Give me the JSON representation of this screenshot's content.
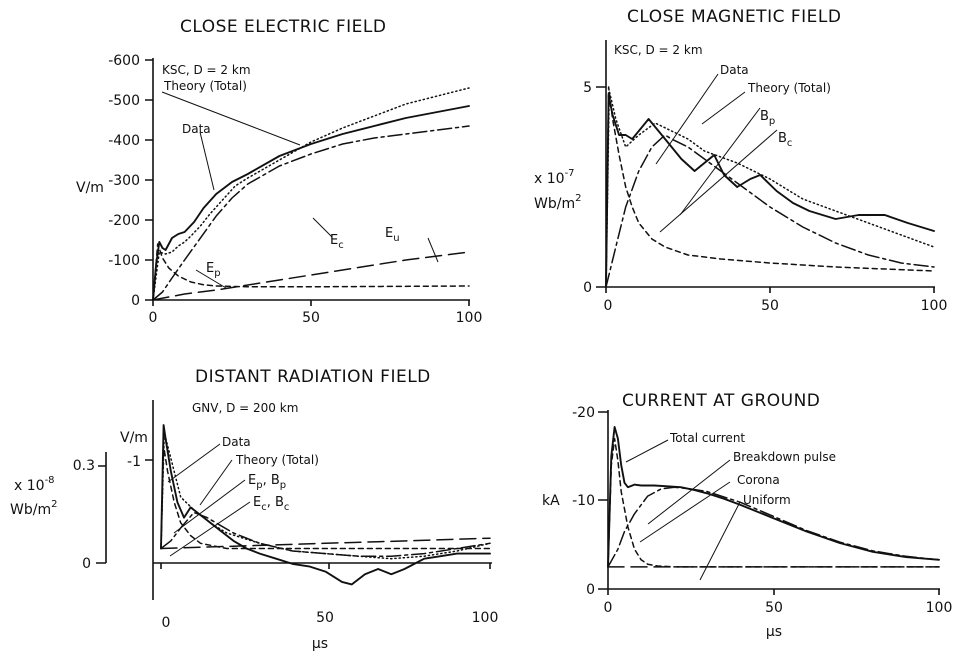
{
  "chart_data": [
    {
      "type": "line",
      "title": "CLOSE ELECTRIC FIELD",
      "subtitle": "KSC, D = 2 km",
      "xlabel": "",
      "ylabel": "V/m",
      "xlim": [
        0,
        100
      ],
      "ylim": [
        0,
        -600
      ],
      "xticks": [
        "0",
        "50",
        "100"
      ],
      "yticks": [
        "0",
        "-100",
        "-200",
        "-300",
        "-400",
        "-500",
        "-600"
      ],
      "series": [
        {
          "name": "Data",
          "style": "solid",
          "x": [
            0,
            1,
            2,
            3,
            4,
            6,
            8,
            10,
            13,
            16,
            20,
            25,
            30,
            40,
            50,
            60,
            70,
            80,
            90,
            100
          ],
          "y": [
            0,
            -90,
            -145,
            -130,
            -125,
            -155,
            -165,
            -170,
            -195,
            -230,
            -265,
            -295,
            -315,
            -360,
            -390,
            -415,
            -435,
            -455,
            -470,
            -485
          ]
        },
        {
          "name": "Theory (Total)",
          "style": "dotted",
          "x": [
            0,
            2,
            4,
            6,
            8,
            10,
            12,
            15,
            18,
            22,
            26,
            30,
            40,
            50,
            60,
            70,
            80,
            90,
            100
          ],
          "y": [
            0,
            -120,
            -115,
            -120,
            -135,
            -145,
            -160,
            -185,
            -215,
            -250,
            -285,
            -305,
            -350,
            -395,
            -430,
            -460,
            -490,
            -510,
            -530
          ]
        },
        {
          "name": "Ec",
          "style": "dashdot",
          "x": [
            0,
            3,
            6,
            10,
            15,
            20,
            25,
            30,
            40,
            50,
            60,
            70,
            80,
            90,
            100
          ],
          "y": [
            0,
            -20,
            -55,
            -100,
            -155,
            -210,
            -255,
            -290,
            -335,
            -365,
            -390,
            -405,
            -415,
            -425,
            -435
          ]
        },
        {
          "name": "Ep",
          "style": "shortdash",
          "x": [
            0,
            1.5,
            3,
            5,
            8,
            12,
            16,
            20,
            30,
            50,
            75,
            100
          ],
          "y": [
            0,
            -140,
            -105,
            -80,
            -60,
            -45,
            -38,
            -35,
            -33,
            -33,
            -34,
            -35
          ]
        },
        {
          "name": "Eu",
          "style": "longdash",
          "x": [
            0,
            10,
            20,
            40,
            60,
            80,
            100
          ],
          "y": [
            0,
            -15,
            -25,
            -50,
            -75,
            -100,
            -120
          ]
        }
      ]
    },
    {
      "type": "line",
      "title": "CLOSE MAGNETIC FIELD",
      "subtitle": "KSC, D = 2 km",
      "xlabel": "",
      "ylabel_line1": "x 10",
      "ylabel_exp": "-7",
      "ylabel_line2": "Wb/m",
      "ylabel_sup": "2",
      "xlim": [
        0,
        100
      ],
      "ylim": [
        0,
        6
      ],
      "xticks": [
        "0",
        "50",
        "100"
      ],
      "yticks": [
        "0",
        "5"
      ],
      "series": [
        {
          "name": "Data",
          "style": "solid",
          "x": [
            0,
            0.8,
            2,
            4,
            6,
            8,
            10,
            13,
            16,
            20,
            23,
            27,
            30,
            33,
            36,
            40,
            44,
            47,
            52,
            57,
            62,
            70,
            77,
            85,
            92,
            100
          ],
          "y": [
            0,
            4.8,
            4.3,
            3.8,
            3.8,
            3.7,
            3.9,
            4.2,
            3.9,
            3.5,
            3.2,
            2.9,
            3.1,
            3.3,
            2.8,
            2.5,
            2.7,
            2.8,
            2.4,
            2.1,
            1.9,
            1.7,
            1.8,
            1.8,
            1.6,
            1.4
          ]
        },
        {
          "name": "Theory (Total)",
          "style": "dotted",
          "x": [
            0,
            1,
            3,
            6,
            10,
            15,
            20,
            25,
            30,
            40,
            50,
            60,
            70,
            80,
            90,
            100
          ],
          "y": [
            0,
            4.9,
            4.2,
            3.5,
            3.8,
            4.1,
            3.9,
            3.7,
            3.4,
            3.1,
            2.7,
            2.2,
            1.9,
            1.6,
            1.3,
            1.0
          ]
        },
        {
          "name": "Bp",
          "style": "dashdot",
          "x": [
            0,
            3,
            6,
            10,
            14,
            18,
            20,
            25,
            30,
            40,
            50,
            60,
            70,
            80,
            90,
            100
          ],
          "y": [
            0,
            1.0,
            2.0,
            2.9,
            3.5,
            3.8,
            3.7,
            3.5,
            3.2,
            2.6,
            2.0,
            1.5,
            1.1,
            0.8,
            0.6,
            0.5
          ]
        },
        {
          "name": "Bc",
          "style": "shortdash",
          "x": [
            0,
            0.8,
            2,
            4,
            6,
            8,
            10,
            14,
            18,
            25,
            35,
            50,
            70,
            100
          ],
          "y": [
            0,
            5.0,
            4.2,
            3.3,
            2.5,
            2.0,
            1.6,
            1.2,
            1.0,
            0.8,
            0.7,
            0.6,
            0.5,
            0.4
          ]
        }
      ]
    },
    {
      "type": "line",
      "title": "DISTANT RADIATION FIELD",
      "subtitle": "GNV, D = 200 km",
      "xlabel": "μs",
      "ylabel_line1": "x 10",
      "ylabel_exp": "-8",
      "ylabel_line2": "Wb/m",
      "ylabel_sup": "2",
      "ylabel2": "V/m",
      "xlim": [
        0,
        100
      ],
      "ylim": [
        -0.15,
        0.5
      ],
      "xticks": [
        "0",
        "50",
        "100"
      ],
      "yticks_left": [
        "0",
        "0.3"
      ],
      "yticks_right": [
        "-1"
      ],
      "series": [
        {
          "name": "Data",
          "style": "solid",
          "x": [
            0,
            0.8,
            1.5,
            3,
            5,
            7,
            9,
            11,
            13,
            15,
            18,
            22,
            26,
            30,
            35,
            40,
            45,
            50,
            55,
            58,
            62,
            66,
            70,
            74,
            77,
            80,
            85,
            90,
            95,
            100
          ],
          "y": [
            0,
            0.48,
            0.42,
            0.3,
            0.18,
            0.12,
            0.16,
            0.14,
            0.12,
            0.1,
            0.07,
            0.03,
            0.0,
            -0.02,
            -0.04,
            -0.06,
            -0.07,
            -0.09,
            -0.13,
            -0.14,
            -0.1,
            -0.08,
            -0.1,
            -0.08,
            -0.06,
            -0.04,
            -0.03,
            -0.02,
            -0.02,
            -0.02
          ]
        },
        {
          "name": "Theory (Total)",
          "style": "dotted",
          "x": [
            0,
            1,
            3,
            6,
            10,
            15,
            20,
            30,
            40,
            50,
            60,
            70,
            80,
            90,
            100
          ],
          "y": [
            0,
            0.45,
            0.35,
            0.2,
            0.15,
            0.1,
            0.06,
            0.02,
            -0.01,
            -0.02,
            -0.03,
            -0.04,
            -0.03,
            -0.01,
            0.02
          ]
        },
        {
          "name": "Ep, Bp",
          "style": "shortdash",
          "x": [
            0,
            0.8,
            2,
            4,
            6,
            9,
            12,
            16,
            20,
            30,
            50,
            100
          ],
          "y": [
            0,
            0.4,
            0.3,
            0.18,
            0.1,
            0.05,
            0.02,
            0.01,
            0.0,
            0.0,
            0.0,
            0.0
          ]
        },
        {
          "name": "Ec, Bc",
          "style": "dashdot",
          "x": [
            0,
            3,
            6,
            10,
            14,
            18,
            22,
            30,
            40,
            50,
            60,
            70,
            80,
            90,
            100
          ],
          "y": [
            0,
            0.03,
            0.08,
            0.14,
            0.12,
            0.09,
            0.06,
            0.02,
            -0.01,
            -0.02,
            -0.03,
            -0.03,
            -0.02,
            0.0,
            0.02
          ]
        },
        {
          "name": "",
          "style": "longdash",
          "x": [
            0,
            25,
            50,
            75,
            100
          ],
          "y": [
            0,
            0.01,
            0.02,
            0.03,
            0.04
          ]
        }
      ]
    },
    {
      "type": "line",
      "title": "CURRENT AT GROUND",
      "xlabel": "μs",
      "ylabel": "kA",
      "xlim": [
        0,
        100
      ],
      "ylim": [
        0,
        -20
      ],
      "xticks": [
        "0",
        "50",
        "100"
      ],
      "yticks": [
        "0",
        "-10",
        "-20"
      ],
      "series": [
        {
          "name": "Total current",
          "style": "solid",
          "x": [
            0,
            1,
            2,
            3,
            4,
            5,
            6,
            8,
            10,
            14,
            18,
            22,
            26,
            30,
            35,
            40,
            50,
            60,
            70,
            80,
            90,
            100
          ],
          "y": [
            -2.5,
            -15,
            -18.3,
            -17,
            -14,
            -12,
            -11.5,
            -11.8,
            -11.7,
            -11.7,
            -11.6,
            -11.5,
            -11.2,
            -10.8,
            -10.2,
            -9.5,
            -8.0,
            -6.5,
            -5.2,
            -4.2,
            -3.6,
            -3.3
          ]
        },
        {
          "name": "Breakdown pulse",
          "style": "shortdash",
          "x": [
            0,
            1,
            2,
            3,
            4,
            6,
            8,
            10,
            12,
            15,
            20,
            30,
            50,
            100
          ],
          "y": [
            -2.5,
            -14,
            -17,
            -14.5,
            -11,
            -7,
            -4.5,
            -3.3,
            -2.8,
            -2.6,
            -2.5,
            -2.5,
            -2.5,
            -2.5
          ]
        },
        {
          "name": "Corona",
          "style": "dashdot",
          "x": [
            0,
            3,
            5,
            8,
            12,
            16,
            20,
            25,
            30,
            40,
            50,
            60,
            70,
            80,
            90,
            100
          ],
          "y": [
            -2.5,
            -4.5,
            -6.5,
            -8.5,
            -10.5,
            -11.3,
            -11.5,
            -11.3,
            -11.0,
            -9.8,
            -8.2,
            -6.6,
            -5.3,
            -4.3,
            -3.7,
            -3.3
          ]
        },
        {
          "name": "Uniform",
          "style": "longdash",
          "x": [
            0,
            20,
            40,
            60,
            80,
            100
          ],
          "y": [
            -2.5,
            -2.5,
            -2.5,
            -2.5,
            -2.5,
            -2.5
          ]
        }
      ]
    }
  ]
}
